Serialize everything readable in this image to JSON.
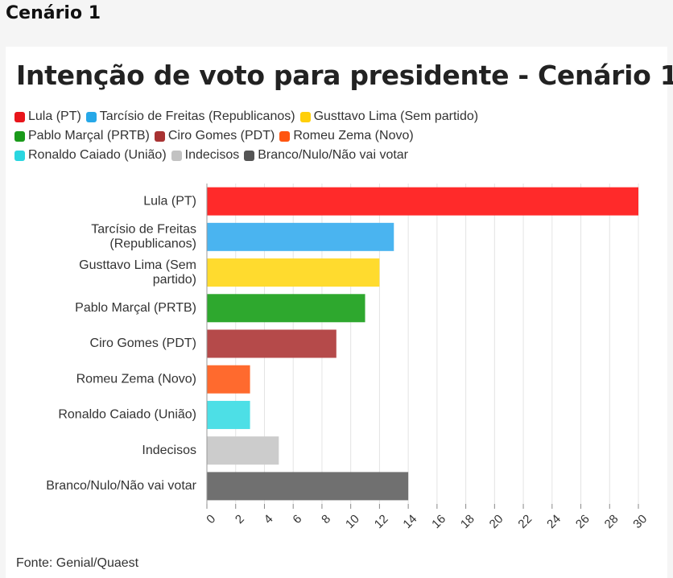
{
  "section_heading": "Cenário 1",
  "source": "Fonte: Genial/Quaest",
  "chart_data": {
    "type": "bar",
    "orientation": "horizontal",
    "title": "Intenção de voto para presidente - Cenário 1",
    "legend_position": "top-left",
    "grid": true,
    "xlim": [
      0,
      30
    ],
    "xticks": [
      "0",
      "2",
      "4",
      "6",
      "8",
      "10",
      "12",
      "14",
      "16",
      "18",
      "20",
      "22",
      "24",
      "26",
      "28",
      "30"
    ],
    "categories": [
      [
        "Lula (PT)"
      ],
      [
        "Tarcísio de Freitas",
        "(Republicanos)"
      ],
      [
        "Gusttavo Lima (Sem",
        "partido)"
      ],
      [
        "Pablo Marçal (PRTB)"
      ],
      [
        "Ciro Gomes (PDT)"
      ],
      [
        "Romeu Zema (Novo)"
      ],
      [
        "Ronaldo Caiado (União)"
      ],
      [
        "Indecisos"
      ],
      [
        "Branco/Nulo/Não vai votar"
      ]
    ],
    "values": [
      30,
      13,
      12,
      11,
      9,
      3,
      3,
      5,
      14
    ],
    "colors": [
      "#ff2a2a",
      "#4ab4f0",
      "#ffdb2e",
      "#2ea82e",
      "#b54a4a",
      "#ff6a2e",
      "#4ddfe6",
      "#cccccc",
      "#707070"
    ],
    "legend": [
      [
        {
          "label": "Lula (PT)",
          "color": "#e8151b"
        },
        {
          "label": "Tarcísio de Freitas (Republicanos)",
          "color": "#26a8e8"
        },
        {
          "label": "Gusttavo Lima (Sem partido)",
          "color": "#ffcf0a"
        }
      ],
      [
        {
          "label": "Pablo Marçal (PRTB)",
          "color": "#1a9a1a"
        },
        {
          "label": "Ciro Gomes (PDT)",
          "color": "#a83232"
        },
        {
          "label": "Romeu Zema (Novo)",
          "color": "#ff5511"
        }
      ],
      [
        {
          "label": "Ronaldo Caiado (União)",
          "color": "#2ad6e0"
        },
        {
          "label": "Indecisos",
          "color": "#c2c2c2"
        },
        {
          "label": "Branco/Nulo/Não vai votar",
          "color": "#555555"
        }
      ]
    ]
  }
}
